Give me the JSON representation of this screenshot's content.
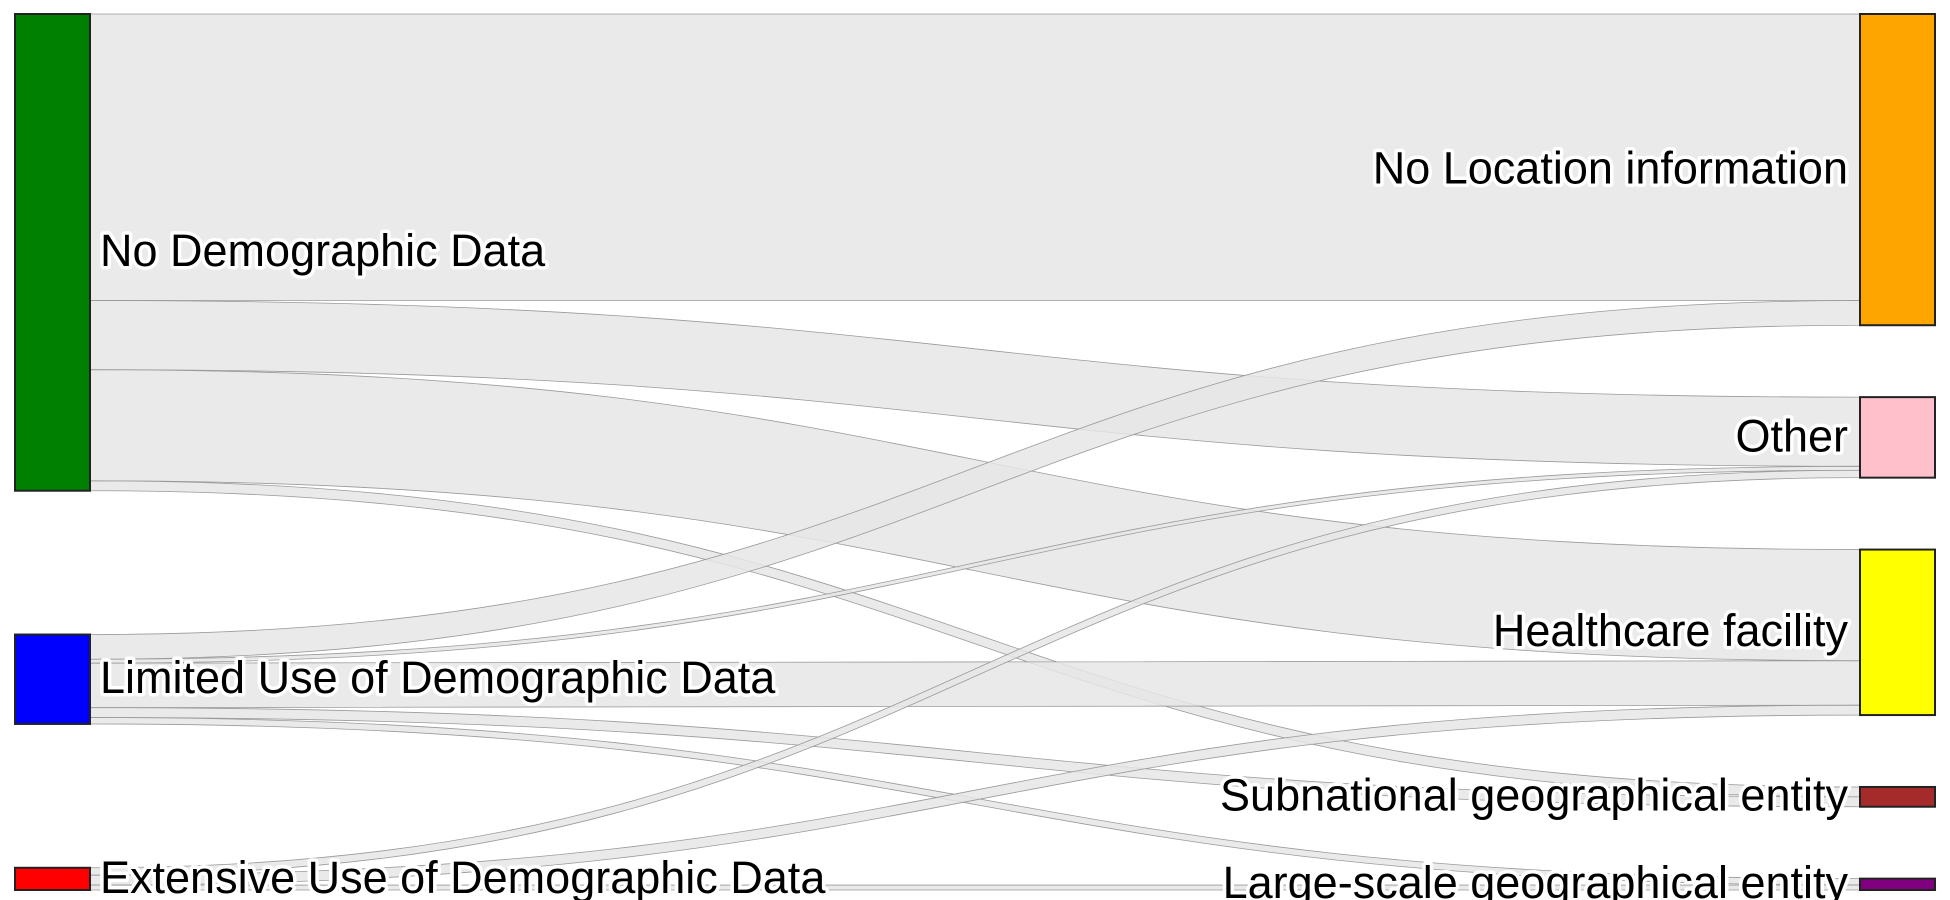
{
  "chart_data": {
    "type": "sankey",
    "sources": [
      {
        "id": "s1",
        "label": "No Demographic Data",
        "color": "#008000"
      },
      {
        "id": "s2",
        "label": "Limited Use of Demographic Data",
        "color": "#0000ff"
      },
      {
        "id": "s3",
        "label": "Extensive Use of Demographic Data",
        "color": "#ff0000"
      }
    ],
    "targets": [
      {
        "id": "t1",
        "label": "No Location information",
        "color": "#ffa500"
      },
      {
        "id": "t2",
        "label": "Other",
        "color": "#ffc0cb"
      },
      {
        "id": "t3",
        "label": "Healthcare facility",
        "color": "#ffff00"
      },
      {
        "id": "t4",
        "label": "Subnational geographical entity",
        "color": "#a52a2a"
      },
      {
        "id": "t5",
        "label": "Large-scale geographical entity",
        "color": "#800080"
      }
    ],
    "links": [
      {
        "source": "s1",
        "target": "t1",
        "value": 58
      },
      {
        "source": "s1",
        "target": "t2",
        "value": 14
      },
      {
        "source": "s1",
        "target": "t3",
        "value": 22.5
      },
      {
        "source": "s1",
        "target": "t4",
        "value": 2
      },
      {
        "source": "s2",
        "target": "t1",
        "value": 5
      },
      {
        "source": "s2",
        "target": "t2",
        "value": 0.8
      },
      {
        "source": "s2",
        "target": "t3",
        "value": 9
      },
      {
        "source": "s2",
        "target": "t4",
        "value": 2
      },
      {
        "source": "s2",
        "target": "t5",
        "value": 1.3
      },
      {
        "source": "s3",
        "target": "t2",
        "value": 1.5
      },
      {
        "source": "s3",
        "target": "t3",
        "value": 2
      },
      {
        "source": "s3",
        "target": "t5",
        "value": 1
      }
    ]
  }
}
